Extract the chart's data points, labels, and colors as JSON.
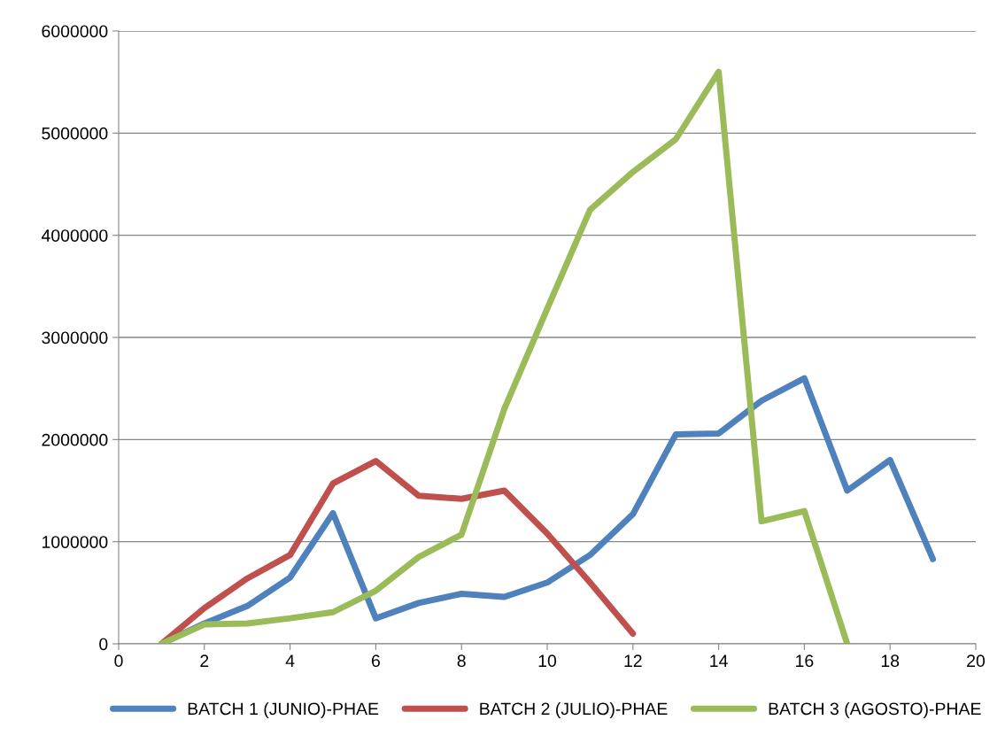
{
  "chart_data": {
    "type": "line",
    "xlim": [
      0,
      20
    ],
    "xticks": [
      0,
      2,
      4,
      6,
      8,
      10,
      12,
      14,
      16,
      18,
      20
    ],
    "ylim": [
      0,
      6000000
    ],
    "yticks": [
      0,
      1000000,
      2000000,
      3000000,
      4000000,
      5000000,
      6000000
    ],
    "grid": "y",
    "legend": "bottom",
    "marker": "none",
    "line_style": "solid",
    "series": [
      {
        "name": "BATCH 1 (JUNIO)-PHAE",
        "color": "#4f81bd",
        "x": [
          1,
          2,
          3,
          4,
          5,
          6,
          7,
          8,
          9,
          10,
          11,
          12,
          13,
          14,
          15,
          16,
          17,
          18,
          19
        ],
        "values": [
          0,
          200000,
          370000,
          650000,
          1280000,
          250000,
          400000,
          490000,
          460000,
          600000,
          870000,
          1270000,
          2050000,
          2060000,
          2380000,
          2600000,
          1500000,
          1800000,
          830000
        ]
      },
      {
        "name": "BATCH 2 (JULIO)-PHAE",
        "color": "#c0504d",
        "x": [
          1,
          2,
          3,
          4,
          5,
          6,
          7,
          8,
          9,
          10,
          11,
          12
        ],
        "values": [
          0,
          350000,
          640000,
          870000,
          1570000,
          1790000,
          1450000,
          1420000,
          1500000,
          1080000,
          600000,
          100000
        ]
      },
      {
        "name": "BATCH 3 (AGOSTO)-PHAE",
        "color": "#9bbb59",
        "x": [
          1,
          2,
          3,
          4,
          5,
          6,
          7,
          8,
          9,
          10,
          11,
          12,
          13,
          14,
          15,
          16,
          17
        ],
        "values": [
          0,
          190000,
          200000,
          250000,
          310000,
          520000,
          850000,
          1070000,
          2300000,
          3280000,
          4250000,
          4620000,
          4940000,
          5600000,
          1200000,
          1300000,
          0
        ]
      }
    ]
  }
}
